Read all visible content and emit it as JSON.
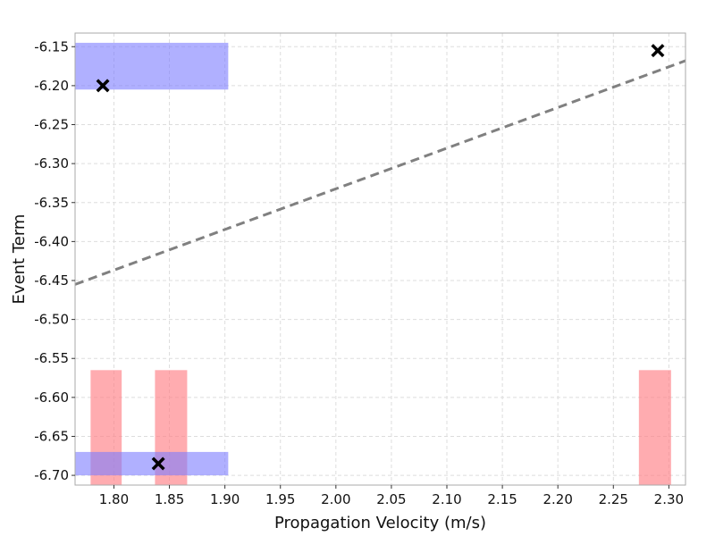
{
  "chart_data": {
    "type": "scatter",
    "title": "",
    "xlabel": "Propagation Velocity (m/s)",
    "ylabel": "Event Term",
    "xlim": [
      1.765,
      2.315
    ],
    "ylim": [
      -6.7125,
      -6.1325
    ],
    "xticks": [
      "1.80",
      "1.85",
      "1.90",
      "1.95",
      "2.00",
      "2.05",
      "2.10",
      "2.15",
      "2.20",
      "2.25",
      "2.30"
    ],
    "yticks": [
      "-6.15",
      "-6.20",
      "-6.25",
      "-6.30",
      "-6.35",
      "-6.40",
      "-6.45",
      "-6.50",
      "-6.55",
      "-6.60",
      "-6.65",
      "-6.70"
    ],
    "grid": true,
    "legend": "none",
    "points": [
      {
        "x": 1.79,
        "y": -6.2
      },
      {
        "x": 1.84,
        "y": -6.685
      },
      {
        "x": 2.29,
        "y": -6.155
      }
    ],
    "trend_line": {
      "x": [
        1.765,
        2.315
      ],
      "y": [
        -6.455,
        -6.168
      ],
      "style": "dashed"
    },
    "horizontal_bands": [
      {
        "y0": -6.205,
        "y1": -6.145,
        "x0": 1.765,
        "x1": 1.903
      },
      {
        "y0": -6.7,
        "y1": -6.67,
        "x0": 1.765,
        "x1": 1.903
      }
    ],
    "vertical_bands": [
      {
        "x0": 1.779,
        "x1": 1.807,
        "y0": -6.7125,
        "y1": -6.565
      },
      {
        "x0": 1.837,
        "x1": 1.866,
        "y0": -6.7125,
        "y1": -6.565
      },
      {
        "x0": 2.273,
        "x1": 2.302,
        "y0": -6.7125,
        "y1": -6.565
      }
    ],
    "colors": {
      "marker": "#000000",
      "trend": "#808080",
      "hband": "#7b7bff",
      "vband": "#ff7f86",
      "grid": "#dddddd",
      "axes": "#aaaaaa"
    }
  }
}
